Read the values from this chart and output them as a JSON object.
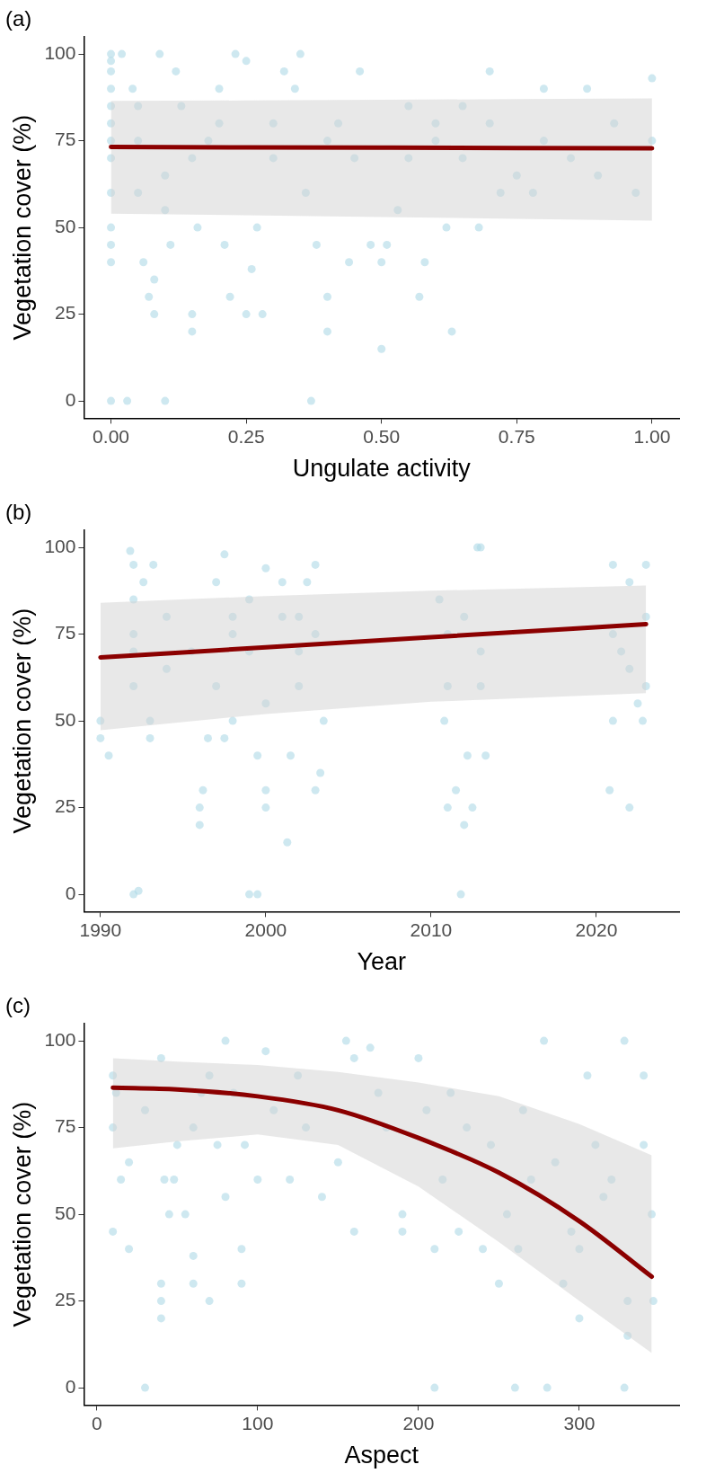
{
  "chart_data": [
    {
      "type": "scatter",
      "title": "(a)",
      "xlabel": "Ungulate activity",
      "ylabel": "Vegetation cover (%)",
      "xlim": [
        -0.05,
        1.05
      ],
      "ylim": [
        -5,
        105
      ],
      "xticks": [
        {
          "value": 0,
          "label": "0.00"
        },
        {
          "value": 0.25,
          "label": "0.25"
        },
        {
          "value": 0.5,
          "label": "0.50"
        },
        {
          "value": 0.75,
          "label": "0.75"
        },
        {
          "value": 1,
          "label": "1.00"
        }
      ],
      "yticks": [
        0,
        25,
        50,
        75,
        100
      ],
      "grid": false,
      "legend": false,
      "series": [
        {
          "marker": "circle",
          "color": "#add8e6",
          "x": [
            0,
            0,
            0,
            0,
            0,
            0,
            0,
            0,
            0,
            0,
            0,
            0,
            0,
            0.02,
            0.03,
            0.04,
            0.05,
            0.05,
            0.06,
            0.07,
            0.08,
            0.08,
            0.09,
            0.1,
            0.1,
            0.11,
            0.12,
            0.13,
            0.15,
            0.15,
            0.16,
            0.18,
            0.2,
            0.21,
            0.22,
            0.23,
            0.25,
            0.25,
            0.26,
            0.27,
            0.28,
            0.3,
            0.32,
            0.34,
            0.35,
            0.36,
            0.37,
            0.38,
            0.4,
            0.4,
            0.42,
            0.44,
            0.46,
            0.48,
            0.5,
            0.5,
            0.51,
            0.53,
            0.55,
            0.57,
            0.58,
            0.6,
            0.62,
            0.63,
            0.65,
            0.68,
            0.7,
            0.72,
            0.75,
            0.78,
            0.8,
            0.85,
            0.88,
            0.9,
            0.93,
            0.97,
            1,
            1,
            0.45,
            0.6,
            0.3,
            0.15,
            0.05,
            0.1,
            0.2,
            0.4,
            0.55,
            0.7,
            0.8,
            0.65
          ],
          "values": [
            0,
            100,
            98,
            95,
            90,
            85,
            80,
            75,
            70,
            60,
            50,
            45,
            40,
            100,
            0,
            90,
            85,
            60,
            40,
            30,
            35,
            25,
            100,
            0,
            55,
            45,
            95,
            85,
            25,
            20,
            50,
            75,
            90,
            45,
            30,
            100,
            98,
            25,
            38,
            50,
            25,
            70,
            95,
            90,
            100,
            60,
            0,
            45,
            20,
            30,
            80,
            40,
            95,
            45,
            15,
            40,
            45,
            55,
            85,
            30,
            40,
            80,
            50,
            20,
            85,
            50,
            95,
            60,
            65,
            60,
            90,
            70,
            90,
            65,
            80,
            60,
            93,
            75,
            70,
            75,
            80,
            70,
            75,
            65,
            80,
            75,
            70,
            80,
            75,
            70
          ]
        },
        {
          "type": "line",
          "color": "#8b0000",
          "x": [
            0,
            0.25,
            0.5,
            0.75,
            1
          ],
          "values": [
            73.2,
            73.1,
            73,
            72.9,
            72.8
          ],
          "lower": [
            54,
            53.5,
            53,
            52.5,
            52
          ],
          "upper": [
            86.5,
            86.6,
            86.8,
            87,
            87.2
          ]
        }
      ]
    },
    {
      "type": "scatter",
      "title": "(b)",
      "xlabel": "Year",
      "ylabel": "Vegetation cover (%)",
      "xlim": [
        1989,
        2025
      ],
      "ylim": [
        -5,
        105
      ],
      "xticks": [
        1990,
        2000,
        2010,
        2020
      ],
      "yticks": [
        0,
        25,
        50,
        75,
        100
      ],
      "grid": false,
      "legend": false,
      "series": [
        {
          "marker": "circle",
          "color": "#add8e6",
          "x": [
            1990,
            1990,
            1990.5,
            1991.8,
            1992,
            1992.3,
            1992,
            1992,
            1992,
            1992,
            1992,
            1992.6,
            1993,
            1993,
            1993.2,
            1994,
            1994,
            1995.5,
            1996,
            1996,
            1996.2,
            1996.5,
            1997,
            1997.5,
            1997,
            1997.5,
            1998,
            1998,
            1999,
            1999.5,
            1999.5,
            1999,
            1999,
            2000,
            2000,
            2000,
            2000,
            2001,
            2001,
            2001.3,
            2001.5,
            2002,
            2002,
            2002.5,
            2003,
            2003,
            2003.3,
            2003.5,
            2003,
            2010.5,
            2010.8,
            2011,
            2011.5,
            2011.8,
            2012,
            2012.2,
            2012.5,
            2012.8,
            2013,
            2013,
            2013.3,
            2012,
            2011,
            2013,
            2020.8,
            2021,
            2021,
            2021.5,
            2022,
            2022,
            2022.5,
            2022.8,
            2023,
            2023,
            2023,
            2021,
            2022,
            1998,
            2002,
            2011
          ],
          "values": [
            50,
            45,
            40,
            99,
            0,
            1,
            95,
            85,
            75,
            60,
            70,
            90,
            45,
            50,
            95,
            65,
            80,
            70,
            25,
            20,
            30,
            45,
            90,
            98,
            60,
            45,
            80,
            50,
            0,
            0,
            40,
            85,
            70,
            94,
            30,
            25,
            55,
            80,
            90,
            15,
            40,
            80,
            60,
            90,
            30,
            95,
            35,
            50,
            75,
            85,
            50,
            25,
            30,
            0,
            20,
            40,
            25,
            100,
            100,
            70,
            40,
            80,
            60,
            60,
            30,
            50,
            95,
            70,
            25,
            90,
            55,
            50,
            95,
            60,
            80,
            75,
            65,
            75,
            70,
            75
          ]
        },
        {
          "type": "line",
          "color": "#8b0000",
          "x": [
            1990,
            2000,
            2010,
            2023
          ],
          "values": [
            68.3,
            71.2,
            74.1,
            77.9
          ],
          "lower": [
            47.3,
            52,
            55.5,
            58
          ],
          "upper": [
            84,
            86,
            87.5,
            89
          ]
        }
      ]
    },
    {
      "type": "scatter",
      "title": "(c)",
      "xlabel": "Aspect",
      "ylabel": "Vegetation cover (%)",
      "xlim": [
        -8,
        362
      ],
      "ylim": [
        -5,
        105
      ],
      "xticks": [
        0,
        100,
        200,
        300
      ],
      "yticks": [
        0,
        25,
        50,
        75,
        100
      ],
      "grid": false,
      "legend": false,
      "series": [
        {
          "marker": "circle",
          "color": "#add8e6",
          "x": [
            10,
            10,
            10,
            12,
            15,
            20,
            20,
            30,
            30,
            40,
            40,
            40,
            40,
            42,
            45,
            48,
            50,
            55,
            60,
            60,
            60,
            65,
            70,
            70,
            75,
            80,
            80,
            90,
            90,
            92,
            100,
            105,
            110,
            120,
            130,
            140,
            150,
            155,
            160,
            160,
            170,
            175,
            180,
            190,
            190,
            200,
            205,
            210,
            210,
            215,
            220,
            225,
            230,
            240,
            245,
            250,
            255,
            260,
            262,
            270,
            278,
            280,
            285,
            290,
            295,
            300,
            300,
            305,
            310,
            315,
            320,
            328,
            330,
            330,
            328,
            340,
            345,
            346,
            340,
            125,
            85,
            265
          ],
          "values": [
            45,
            75,
            90,
            85,
            60,
            40,
            65,
            0,
            80,
            95,
            30,
            25,
            20,
            60,
            50,
            60,
            70,
            50,
            30,
            38,
            75,
            85,
            25,
            90,
            70,
            55,
            100,
            40,
            30,
            70,
            60,
            97,
            80,
            60,
            75,
            55,
            65,
            100,
            45,
            95,
            98,
            85,
            75,
            50,
            45,
            95,
            80,
            0,
            40,
            60,
            85,
            45,
            75,
            40,
            70,
            30,
            50,
            0,
            40,
            60,
            100,
            0,
            65,
            30,
            45,
            20,
            40,
            90,
            70,
            55,
            60,
            100,
            15,
            25,
            0,
            90,
            50,
            25,
            70,
            90,
            85,
            80
          ]
        },
        {
          "type": "line",
          "color": "#8b0000",
          "x": [
            10,
            50,
            100,
            150,
            200,
            250,
            300,
            345
          ],
          "values": [
            86.5,
            86,
            84,
            80,
            72,
            62,
            48,
            32
          ],
          "lower": [
            69,
            71,
            73,
            70,
            58,
            42,
            25,
            10
          ],
          "upper": [
            95,
            94,
            93,
            91,
            88,
            84,
            76,
            67
          ]
        }
      ]
    }
  ]
}
